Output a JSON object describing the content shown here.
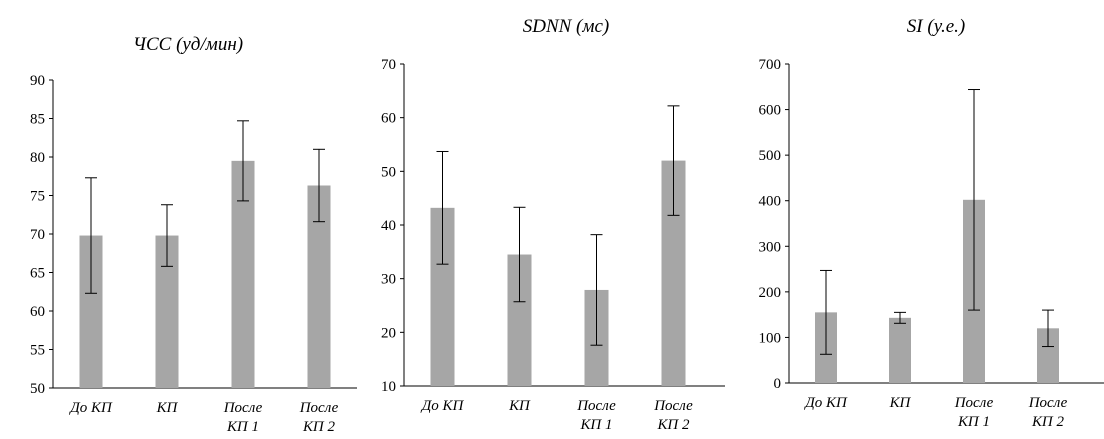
{
  "chart_data": [
    {
      "type": "bar",
      "title": "ЧСС (уд/мин)",
      "categories": [
        [
          "До КП"
        ],
        [
          "КП"
        ],
        [
          "После",
          "КП 1"
        ],
        [
          "После",
          "КП 2"
        ]
      ],
      "values": [
        69.8,
        69.8,
        79.5,
        76.3
      ],
      "errors": [
        7.5,
        4.0,
        5.2,
        4.7
      ],
      "ylim": [
        50,
        90
      ],
      "yticks": [
        50,
        55,
        60,
        65,
        70,
        75,
        80,
        85,
        90
      ],
      "color": "#a6a6a6"
    },
    {
      "type": "bar",
      "title": "SDNN (мс)",
      "categories": [
        [
          "До КП"
        ],
        [
          "КП"
        ],
        [
          "После",
          "КП 1"
        ],
        [
          "После",
          "КП 2"
        ]
      ],
      "values": [
        43.2,
        34.5,
        27.9,
        52.0
      ],
      "errors": [
        10.5,
        8.8,
        10.3,
        10.2
      ],
      "ylim": [
        10,
        70
      ],
      "yticks": [
        10,
        20,
        30,
        40,
        50,
        60,
        70
      ],
      "color": "#a6a6a6"
    },
    {
      "type": "bar",
      "title": "SI (у.е.)",
      "categories": [
        [
          "До КП"
        ],
        [
          "КП"
        ],
        [
          "После",
          "КП 1"
        ],
        [
          "После",
          "КП 2"
        ]
      ],
      "values": [
        155,
        143,
        402,
        120
      ],
      "errors": [
        92,
        12,
        242,
        40
      ],
      "ylim": [
        0,
        700
      ],
      "yticks": [
        0,
        100,
        200,
        300,
        400,
        500,
        600,
        700
      ],
      "color": "#a6a6a6"
    }
  ]
}
